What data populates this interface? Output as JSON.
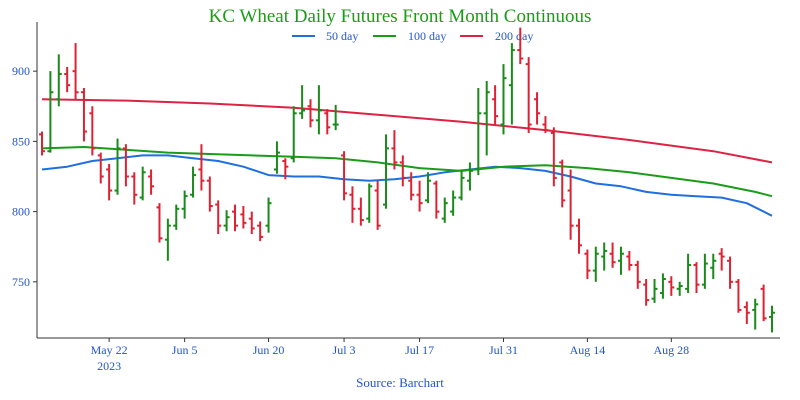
{
  "chart_data": {
    "type": "ohlc",
    "title": "KC Wheat Daily Futures Front Month Continuous",
    "source": "Source: Barchart",
    "xlabel": "",
    "ylabel": "",
    "ylim": [
      710,
      935
    ],
    "y_ticks": [
      750,
      800,
      850,
      900
    ],
    "x_ticks": [
      "May 22",
      "Jun 5",
      "Jun 20",
      "Jul 3",
      "Jul 17",
      "Jul 31",
      "Aug 14",
      "Aug 28"
    ],
    "x_tick_sublabel": "2023",
    "legend": [
      "50 day",
      "100 day",
      "200 day"
    ],
    "colors": {
      "up": "#1a8a1a",
      "down": "#dd2233",
      "ma50": "#1f6fdd",
      "ma100": "#1a9c1a",
      "ma200": "#dd2244",
      "axis": "#333333",
      "text": "#2255cc",
      "title": "#1a9c1a"
    },
    "ohlc": [
      {
        "date": "May 10",
        "open": 855,
        "high": 857,
        "low": 840,
        "close": 843
      },
      {
        "date": "May 11",
        "open": 843,
        "high": 900,
        "low": 842,
        "close": 885
      },
      {
        "date": "May 12",
        "open": 880,
        "high": 912,
        "low": 875,
        "close": 898
      },
      {
        "date": "May 15",
        "open": 898,
        "high": 903,
        "low": 885,
        "close": 890
      },
      {
        "date": "May 16",
        "open": 900,
        "high": 920,
        "low": 880,
        "close": 885
      },
      {
        "date": "May 17",
        "open": 885,
        "high": 888,
        "low": 850,
        "close": 857
      },
      {
        "date": "May 18",
        "open": 870,
        "high": 875,
        "low": 840,
        "close": 845
      },
      {
        "date": "May 19",
        "open": 840,
        "high": 842,
        "low": 820,
        "close": 825
      },
      {
        "date": "May 22",
        "open": 830,
        "high": 834,
        "low": 808,
        "close": 815
      },
      {
        "date": "May 23",
        "open": 815,
        "high": 852,
        "low": 812,
        "close": 845
      },
      {
        "date": "May 24",
        "open": 845,
        "high": 848,
        "low": 818,
        "close": 825
      },
      {
        "date": "May 25",
        "open": 825,
        "high": 828,
        "low": 805,
        "close": 812
      },
      {
        "date": "May 26",
        "open": 810,
        "high": 832,
        "low": 808,
        "close": 828
      },
      {
        "date": "May 30",
        "open": 825,
        "high": 830,
        "low": 812,
        "close": 818
      },
      {
        "date": "May 31",
        "open": 803,
        "high": 806,
        "low": 778,
        "close": 781
      },
      {
        "date": "Jun 1",
        "open": 780,
        "high": 795,
        "low": 765,
        "close": 790
      },
      {
        "date": "Jun 2",
        "open": 790,
        "high": 805,
        "low": 787,
        "close": 802
      },
      {
        "date": "Jun 5",
        "open": 802,
        "high": 815,
        "low": 795,
        "close": 811
      },
      {
        "date": "Jun 6",
        "open": 812,
        "high": 832,
        "low": 810,
        "close": 826
      },
      {
        "date": "Jun 7",
        "open": 830,
        "high": 848,
        "low": 815,
        "close": 822
      },
      {
        "date": "Jun 8",
        "open": 822,
        "high": 825,
        "low": 800,
        "close": 804
      },
      {
        "date": "Jun 9",
        "open": 805,
        "high": 808,
        "low": 784,
        "close": 790
      },
      {
        "date": "Jun 12",
        "open": 790,
        "high": 801,
        "low": 786,
        "close": 796
      },
      {
        "date": "Jun 13",
        "open": 800,
        "high": 805,
        "low": 786,
        "close": 790
      },
      {
        "date": "Jun 14",
        "open": 798,
        "high": 804,
        "low": 788,
        "close": 792
      },
      {
        "date": "Jun 15",
        "open": 795,
        "high": 800,
        "low": 784,
        "close": 788
      },
      {
        "date": "Jun 16",
        "open": 790,
        "high": 793,
        "low": 779,
        "close": 782
      },
      {
        "date": "Jun 20",
        "open": 790,
        "high": 810,
        "low": 785,
        "close": 806
      },
      {
        "date": "Jun 21",
        "open": 830,
        "high": 850,
        "low": 827,
        "close": 842
      },
      {
        "date": "Jun 22",
        "open": 836,
        "high": 838,
        "low": 823,
        "close": 832
      },
      {
        "date": "Jun 23",
        "open": 838,
        "high": 875,
        "low": 835,
        "close": 870
      },
      {
        "date": "Jun 26",
        "open": 870,
        "high": 890,
        "low": 866,
        "close": 872
      },
      {
        "date": "Jun 27",
        "open": 875,
        "high": 880,
        "low": 860,
        "close": 865
      },
      {
        "date": "Jun 28",
        "open": 865,
        "high": 890,
        "low": 855,
        "close": 872
      },
      {
        "date": "Jun 29",
        "open": 870,
        "high": 873,
        "low": 855,
        "close": 860
      },
      {
        "date": "Jun 30",
        "open": 862,
        "high": 876,
        "low": 858,
        "close": 862
      },
      {
        "date": "Jul 3",
        "open": 840,
        "high": 843,
        "low": 808,
        "close": 813
      },
      {
        "date": "Jul 5",
        "open": 812,
        "high": 818,
        "low": 792,
        "close": 802
      },
      {
        "date": "Jul 6",
        "open": 802,
        "high": 810,
        "low": 790,
        "close": 794
      },
      {
        "date": "Jul 7",
        "open": 795,
        "high": 820,
        "low": 792,
        "close": 818
      },
      {
        "date": "Jul 10",
        "open": 815,
        "high": 822,
        "low": 787,
        "close": 790
      },
      {
        "date": "Jul 11",
        "open": 805,
        "high": 855,
        "low": 802,
        "close": 845
      },
      {
        "date": "Jul 12",
        "open": 845,
        "high": 858,
        "low": 830,
        "close": 835
      },
      {
        "date": "Jul 13",
        "open": 835,
        "high": 840,
        "low": 818,
        "close": 824
      },
      {
        "date": "Jul 14",
        "open": 822,
        "high": 828,
        "low": 808,
        "close": 812
      },
      {
        "date": "Jul 17",
        "open": 812,
        "high": 822,
        "low": 800,
        "close": 806
      },
      {
        "date": "Jul 18",
        "open": 808,
        "high": 828,
        "low": 806,
        "close": 822
      },
      {
        "date": "Jul 19",
        "open": 820,
        "high": 822,
        "low": 795,
        "close": 800
      },
      {
        "date": "Jul 20",
        "open": 795,
        "high": 810,
        "low": 792,
        "close": 806
      },
      {
        "date": "Jul 21",
        "open": 800,
        "high": 815,
        "low": 797,
        "close": 810
      },
      {
        "date": "Jul 24",
        "open": 810,
        "high": 830,
        "low": 808,
        "close": 824
      },
      {
        "date": "Jul 25",
        "open": 822,
        "high": 835,
        "low": 815,
        "close": 829
      },
      {
        "date": "Jul 26",
        "open": 830,
        "high": 888,
        "low": 826,
        "close": 870
      },
      {
        "date": "Jul 27",
        "open": 870,
        "high": 893,
        "low": 840,
        "close": 885
      },
      {
        "date": "Jul 28",
        "open": 880,
        "high": 890,
        "low": 862,
        "close": 868
      },
      {
        "date": "Jul 31",
        "open": 862,
        "high": 905,
        "low": 855,
        "close": 895
      },
      {
        "date": "Aug 1",
        "open": 890,
        "high": 920,
        "low": 862,
        "close": 915
      },
      {
        "date": "Aug 2",
        "open": 915,
        "high": 931,
        "low": 905,
        "close": 909
      },
      {
        "date": "Aug 3",
        "open": 905,
        "high": 910,
        "low": 856,
        "close": 862
      },
      {
        "date": "Aug 4",
        "open": 880,
        "high": 885,
        "low": 862,
        "close": 870
      },
      {
        "date": "Aug 7",
        "open": 862,
        "high": 868,
        "low": 856,
        "close": 858
      },
      {
        "date": "Aug 8",
        "open": 856,
        "high": 860,
        "low": 818,
        "close": 824
      },
      {
        "date": "Aug 9",
        "open": 835,
        "high": 837,
        "low": 803,
        "close": 808
      },
      {
        "date": "Aug 10",
        "open": 815,
        "high": 830,
        "low": 780,
        "close": 790
      },
      {
        "date": "Aug 11",
        "open": 790,
        "high": 795,
        "low": 770,
        "close": 776
      },
      {
        "date": "Aug 14",
        "open": 770,
        "high": 773,
        "low": 752,
        "close": 758
      },
      {
        "date": "Aug 15",
        "open": 758,
        "high": 775,
        "low": 750,
        "close": 770
      },
      {
        "date": "Aug 16",
        "open": 768,
        "high": 778,
        "low": 758,
        "close": 772
      },
      {
        "date": "Aug 17",
        "open": 770,
        "high": 778,
        "low": 760,
        "close": 764
      },
      {
        "date": "Aug 18",
        "open": 765,
        "high": 775,
        "low": 755,
        "close": 770
      },
      {
        "date": "Aug 21",
        "open": 768,
        "high": 772,
        "low": 758,
        "close": 762
      },
      {
        "date": "Aug 22",
        "open": 762,
        "high": 765,
        "low": 745,
        "close": 750
      },
      {
        "date": "Aug 23",
        "open": 748,
        "high": 752,
        "low": 733,
        "close": 737
      },
      {
        "date": "Aug 24",
        "open": 738,
        "high": 752,
        "low": 735,
        "close": 745
      },
      {
        "date": "Aug 25",
        "open": 742,
        "high": 756,
        "low": 738,
        "close": 752
      },
      {
        "date": "Aug 28",
        "open": 750,
        "high": 754,
        "low": 740,
        "close": 746
      },
      {
        "date": "Aug 29",
        "open": 745,
        "high": 750,
        "low": 740,
        "close": 747
      },
      {
        "date": "Aug 30",
        "open": 745,
        "high": 770,
        "low": 742,
        "close": 762
      },
      {
        "date": "Aug 31",
        "open": 762,
        "high": 764,
        "low": 742,
        "close": 748
      },
      {
        "date": "Sep 1",
        "open": 748,
        "high": 770,
        "low": 745,
        "close": 763
      },
      {
        "date": "Sep 5",
        "open": 760,
        "high": 770,
        "low": 752,
        "close": 765
      },
      {
        "date": "Sep 6",
        "open": 770,
        "high": 774,
        "low": 758,
        "close": 768
      },
      {
        "date": "Sep 7",
        "open": 765,
        "high": 768,
        "low": 745,
        "close": 750
      },
      {
        "date": "Sep 8",
        "open": 750,
        "high": 752,
        "low": 728,
        "close": 730
      },
      {
        "date": "Sep 11",
        "open": 732,
        "high": 736,
        "low": 720,
        "close": 728
      },
      {
        "date": "Sep 12",
        "open": 730,
        "high": 738,
        "low": 716,
        "close": 734
      },
      {
        "date": "Sep 13",
        "open": 745,
        "high": 748,
        "low": 722,
        "close": 724
      },
      {
        "date": "Sep 14",
        "open": 725,
        "high": 733,
        "low": 714,
        "close": 728
      }
    ],
    "moving_averages": [
      {
        "name": "50 day",
        "color": "#1f6fdd",
        "x": [
          0,
          3,
          6,
          9,
          12,
          15,
          18,
          21,
          24,
          27,
          30,
          33,
          36,
          39,
          42,
          45,
          48,
          51,
          54,
          57,
          60,
          63,
          66,
          69,
          72,
          75,
          78,
          81,
          84,
          87
        ],
        "y": [
          830,
          832,
          836,
          838,
          840,
          840,
          838,
          836,
          832,
          826,
          825,
          825,
          823,
          822,
          823,
          825,
          828,
          830,
          832,
          831,
          829,
          825,
          820,
          818,
          814,
          812,
          811,
          810,
          806,
          797
        ]
      },
      {
        "name": "100 day",
        "color": "#1a9c1a",
        "x": [
          0,
          5,
          10,
          15,
          20,
          25,
          30,
          35,
          40,
          45,
          50,
          55,
          60,
          65,
          70,
          75,
          80,
          85,
          87
        ],
        "y": [
          845,
          846,
          844,
          842,
          841,
          840,
          839,
          838,
          835,
          831,
          829,
          832,
          833,
          831,
          828,
          824,
          820,
          814,
          811
        ]
      },
      {
        "name": "200 day",
        "color": "#dd2244",
        "x": [
          0,
          10,
          20,
          30,
          40,
          50,
          60,
          70,
          80,
          87
        ],
        "y": [
          880,
          879,
          877,
          874,
          869,
          864,
          858,
          851,
          843,
          835
        ]
      }
    ]
  }
}
